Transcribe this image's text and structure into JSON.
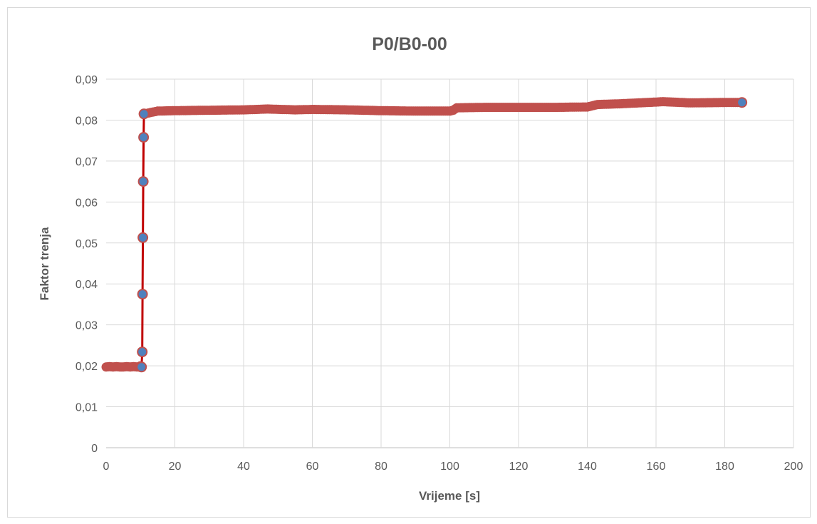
{
  "chart_data": {
    "type": "scatter",
    "title": "P0/B0-00",
    "xlabel": "Vrijeme [s]",
    "ylabel": "Faktor trenja",
    "xlim": [
      0,
      200
    ],
    "ylim": [
      0,
      0.09
    ],
    "x_ticks": [
      0,
      20,
      40,
      60,
      80,
      100,
      120,
      140,
      160,
      180,
      200
    ],
    "x_tick_labels": [
      "0",
      "20",
      "40",
      "60",
      "80",
      "100",
      "120",
      "140",
      "160",
      "180",
      "200"
    ],
    "y_ticks": [
      0,
      0.01,
      0.02,
      0.03,
      0.04,
      0.05,
      0.06,
      0.07,
      0.08,
      0.09
    ],
    "y_tick_labels": [
      "0",
      "0,01",
      "0,02",
      "0,03",
      "0,04",
      "0,05",
      "0,06",
      "0,07",
      "0,08",
      "0,09"
    ],
    "grid": true,
    "legend": "none",
    "line_color": "#c00000",
    "marker_color": "#c0504d",
    "endpoint_marker_color": "#4f81bd",
    "series": [
      {
        "x": [
          0,
          1,
          2,
          3,
          4,
          5,
          6,
          7,
          8,
          9,
          10,
          10.3,
          10.5,
          10.6,
          10.7,
          10.8,
          10.9,
          11,
          15,
          20,
          30,
          40,
          47,
          55,
          60,
          70,
          80,
          90,
          100,
          101,
          102,
          110,
          120,
          130,
          140,
          143,
          150,
          160,
          162,
          170,
          180,
          185
        ],
        "y": [
          0.0197,
          0.0198,
          0.0197,
          0.0198,
          0.0197,
          0.0197,
          0.0198,
          0.0197,
          0.0198,
          0.0197,
          0.0198,
          0.0197,
          0.0234,
          0.0375,
          0.0513,
          0.065,
          0.0758,
          0.0815,
          0.0822,
          0.0823,
          0.0824,
          0.0825,
          0.0827,
          0.0825,
          0.0826,
          0.0825,
          0.0823,
          0.0822,
          0.0822,
          0.0824,
          0.083,
          0.0831,
          0.0831,
          0.0831,
          0.0832,
          0.0838,
          0.084,
          0.0844,
          0.0845,
          0.0842,
          0.0843,
          0.0843
        ]
      }
    ]
  }
}
